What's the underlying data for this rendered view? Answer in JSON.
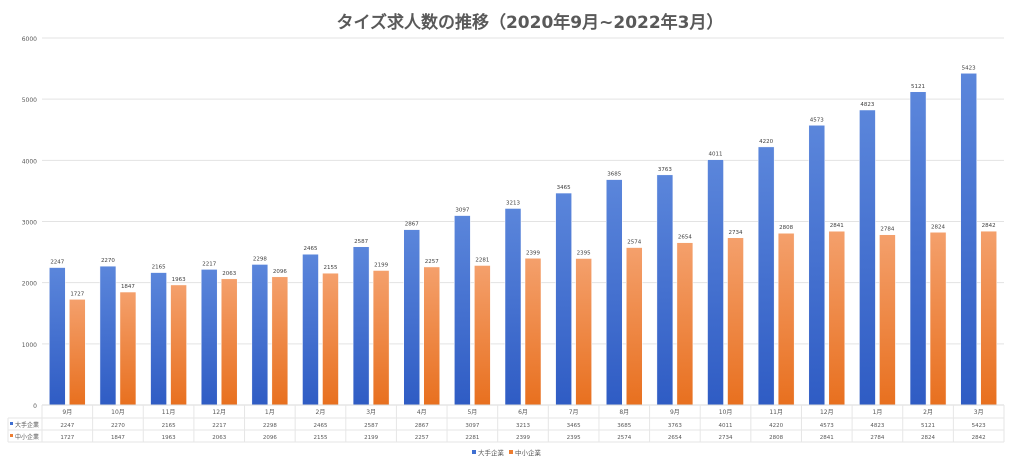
{
  "chart_data": {
    "type": "bar",
    "title": "タイズ求人数の推移（2020年9月~2022年3月）",
    "categories": [
      "9月",
      "10月",
      "11月",
      "12月",
      "1月",
      "2月",
      "3月",
      "4月",
      "5月",
      "6月",
      "7月",
      "8月",
      "9月",
      "10月",
      "11月",
      "12月",
      "1月",
      "2月",
      "3月"
    ],
    "series": [
      {
        "name": "大手企業",
        "color": "#3f6fd1",
        "values": [
          2247,
          2270,
          2165,
          2217,
          2298,
          2465,
          2587,
          2867,
          3097,
          3213,
          3465,
          3685,
          3763,
          4011,
          4220,
          4573,
          4823,
          5121,
          5423
        ]
      },
      {
        "name": "中小企業",
        "color": "#ed7d31",
        "values": [
          1727,
          1847,
          1963,
          2063,
          2096,
          2155,
          2199,
          2257,
          2281,
          2399,
          2395,
          2574,
          2654,
          2734,
          2808,
          2841,
          2784,
          2824,
          2842
        ]
      }
    ],
    "ylim": [
      0,
      6000
    ],
    "yticks": [
      0,
      1000,
      2000,
      3000,
      4000,
      5000,
      6000
    ],
    "grid": true,
    "data_labels": true,
    "data_table": true,
    "legend": "bottom"
  }
}
